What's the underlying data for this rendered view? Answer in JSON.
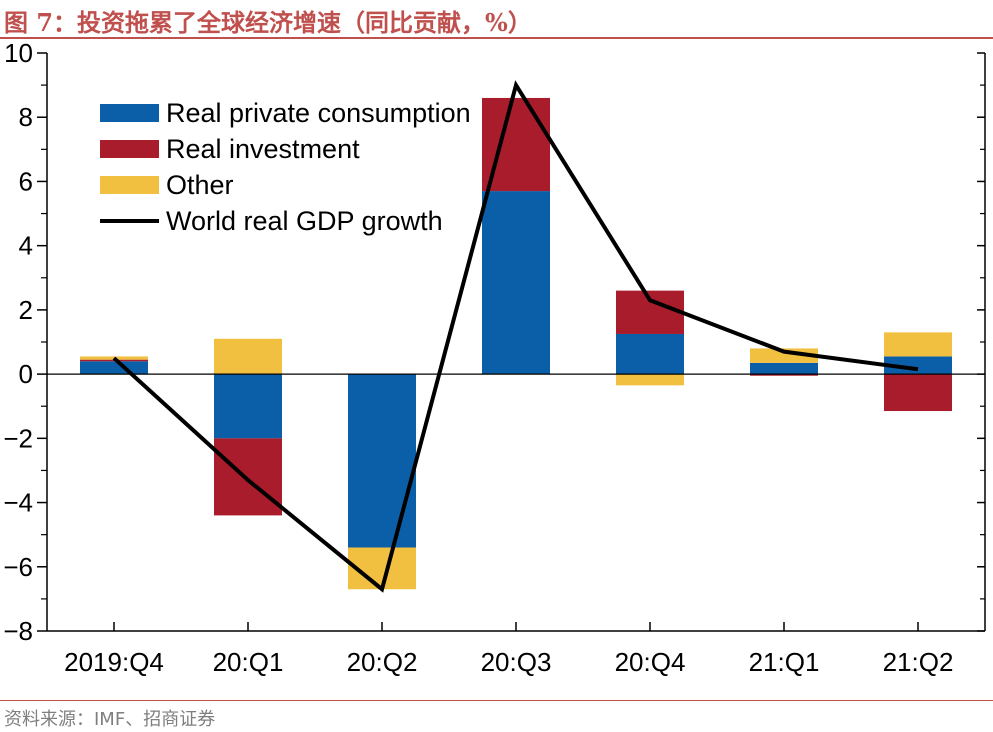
{
  "title": "图 7：投资拖累了全球经济增速（同比贡献，%）",
  "source": "资料来源：IMF、招商证券",
  "colors": {
    "consumption": "#0a5fa8",
    "investment": "#a81c2c",
    "other": "#f2c040",
    "line": "#000000",
    "accent": "#c0504d"
  },
  "chart_data": {
    "type": "bar",
    "stacked": true,
    "categories": [
      "2019:Q4",
      "20:Q1",
      "20:Q2",
      "20:Q3",
      "20:Q4",
      "21:Q1",
      "21:Q2"
    ],
    "series": [
      {
        "name": "Real private consumption",
        "kind": "bar",
        "color_key": "consumption",
        "values": [
          0.4,
          -2.0,
          -5.4,
          5.7,
          1.25,
          0.35,
          0.55
        ]
      },
      {
        "name": "Real investment",
        "kind": "bar",
        "color_key": "investment",
        "values": [
          0.05,
          -2.4,
          0.0,
          2.9,
          1.35,
          -0.05,
          -1.15
        ]
      },
      {
        "name": "Other",
        "kind": "bar",
        "color_key": "other",
        "values": [
          0.1,
          1.1,
          -1.3,
          0.0,
          -0.35,
          0.45,
          0.75
        ]
      },
      {
        "name": "World real GDP growth",
        "kind": "line",
        "color_key": "line",
        "values": [
          0.5,
          -3.3,
          -6.7,
          9.0,
          2.3,
          0.7,
          0.15
        ]
      }
    ],
    "yticks": [
      "10",
      "8",
      "6",
      "4",
      "2",
      "0",
      "−2",
      "−4",
      "−6",
      "−8"
    ],
    "ylim": [
      -8,
      10
    ],
    "ytick_step": 2,
    "yminor_step": 1,
    "xlabel": "",
    "ylabel": "",
    "grid": false,
    "legend_position": "top-left"
  }
}
